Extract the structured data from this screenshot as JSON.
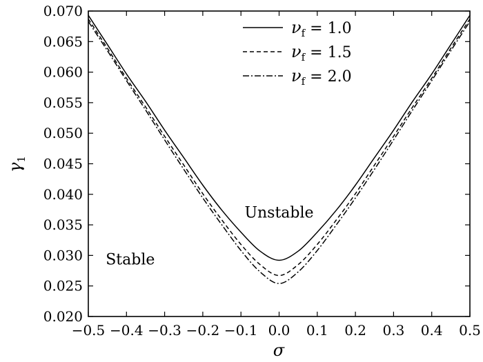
{
  "chart_data": {
    "type": "line",
    "title": "",
    "xlabel": "σ",
    "ylabel": "γ1",
    "ylabel_main": "γ",
    "ylabel_sub": "1",
    "xlim": [
      -0.5,
      0.5
    ],
    "ylim": [
      0.02,
      0.07
    ],
    "x_ticks": [
      "−0.5",
      "−0.4",
      "−0.3",
      "−0.2",
      "−0.1",
      "0.0",
      "0.1",
      "0.2",
      "0.3",
      "0.4",
      "0.5"
    ],
    "y_ticks": [
      "0.020",
      "0.025",
      "0.030",
      "0.035",
      "0.040",
      "0.045",
      "0.050",
      "0.055",
      "0.060",
      "0.065",
      "0.070"
    ],
    "grid": false,
    "legend_position": "top-right",
    "annotations": [
      {
        "text": "Unstable",
        "x": 0.0,
        "y": 0.0362
      },
      {
        "text": "Stable",
        "x": -0.39,
        "y": 0.0285
      }
    ],
    "x": [
      -0.5,
      -0.45,
      -0.4,
      -0.35,
      -0.3,
      -0.25,
      -0.2,
      -0.15,
      -0.1,
      -0.05,
      0.0,
      0.05,
      0.1,
      0.15,
      0.2,
      0.25,
      0.3,
      0.35,
      0.4,
      0.45,
      0.5
    ],
    "series": [
      {
        "name": "νf = 1.0",
        "legend_symbol": "ν",
        "legend_sub": "f",
        "legend_value": "= 1.0",
        "dash": "",
        "values": [
          0.0693,
          0.0645,
          0.0597,
          0.0552,
          0.0505,
          0.046,
          0.0415,
          0.0374,
          0.0338,
          0.0307,
          0.0292,
          0.0307,
          0.0338,
          0.0374,
          0.0415,
          0.046,
          0.0505,
          0.0552,
          0.0597,
          0.0645,
          0.0693
        ]
      },
      {
        "name": "νf = 1.5",
        "legend_symbol": "ν",
        "legend_sub": "f",
        "legend_value": "= 1.5",
        "dash": "6 4",
        "values": [
          0.0687,
          0.0639,
          0.059,
          0.0543,
          0.0495,
          0.0448,
          0.0401,
          0.0358,
          0.0318,
          0.0285,
          0.0267,
          0.0285,
          0.0318,
          0.0358,
          0.0401,
          0.0448,
          0.0495,
          0.0543,
          0.059,
          0.0639,
          0.0687
        ]
      },
      {
        "name": "νf = 2.0",
        "legend_symbol": "ν",
        "legend_sub": "f",
        "legend_value": "= 2.0",
        "dash": "9 3 2 3",
        "values": [
          0.0683,
          0.0635,
          0.0586,
          0.0538,
          0.0489,
          0.0441,
          0.0394,
          0.035,
          0.0308,
          0.0273,
          0.0254,
          0.0273,
          0.0308,
          0.035,
          0.0394,
          0.0441,
          0.0489,
          0.0538,
          0.0586,
          0.0635,
          0.0683
        ]
      }
    ]
  }
}
